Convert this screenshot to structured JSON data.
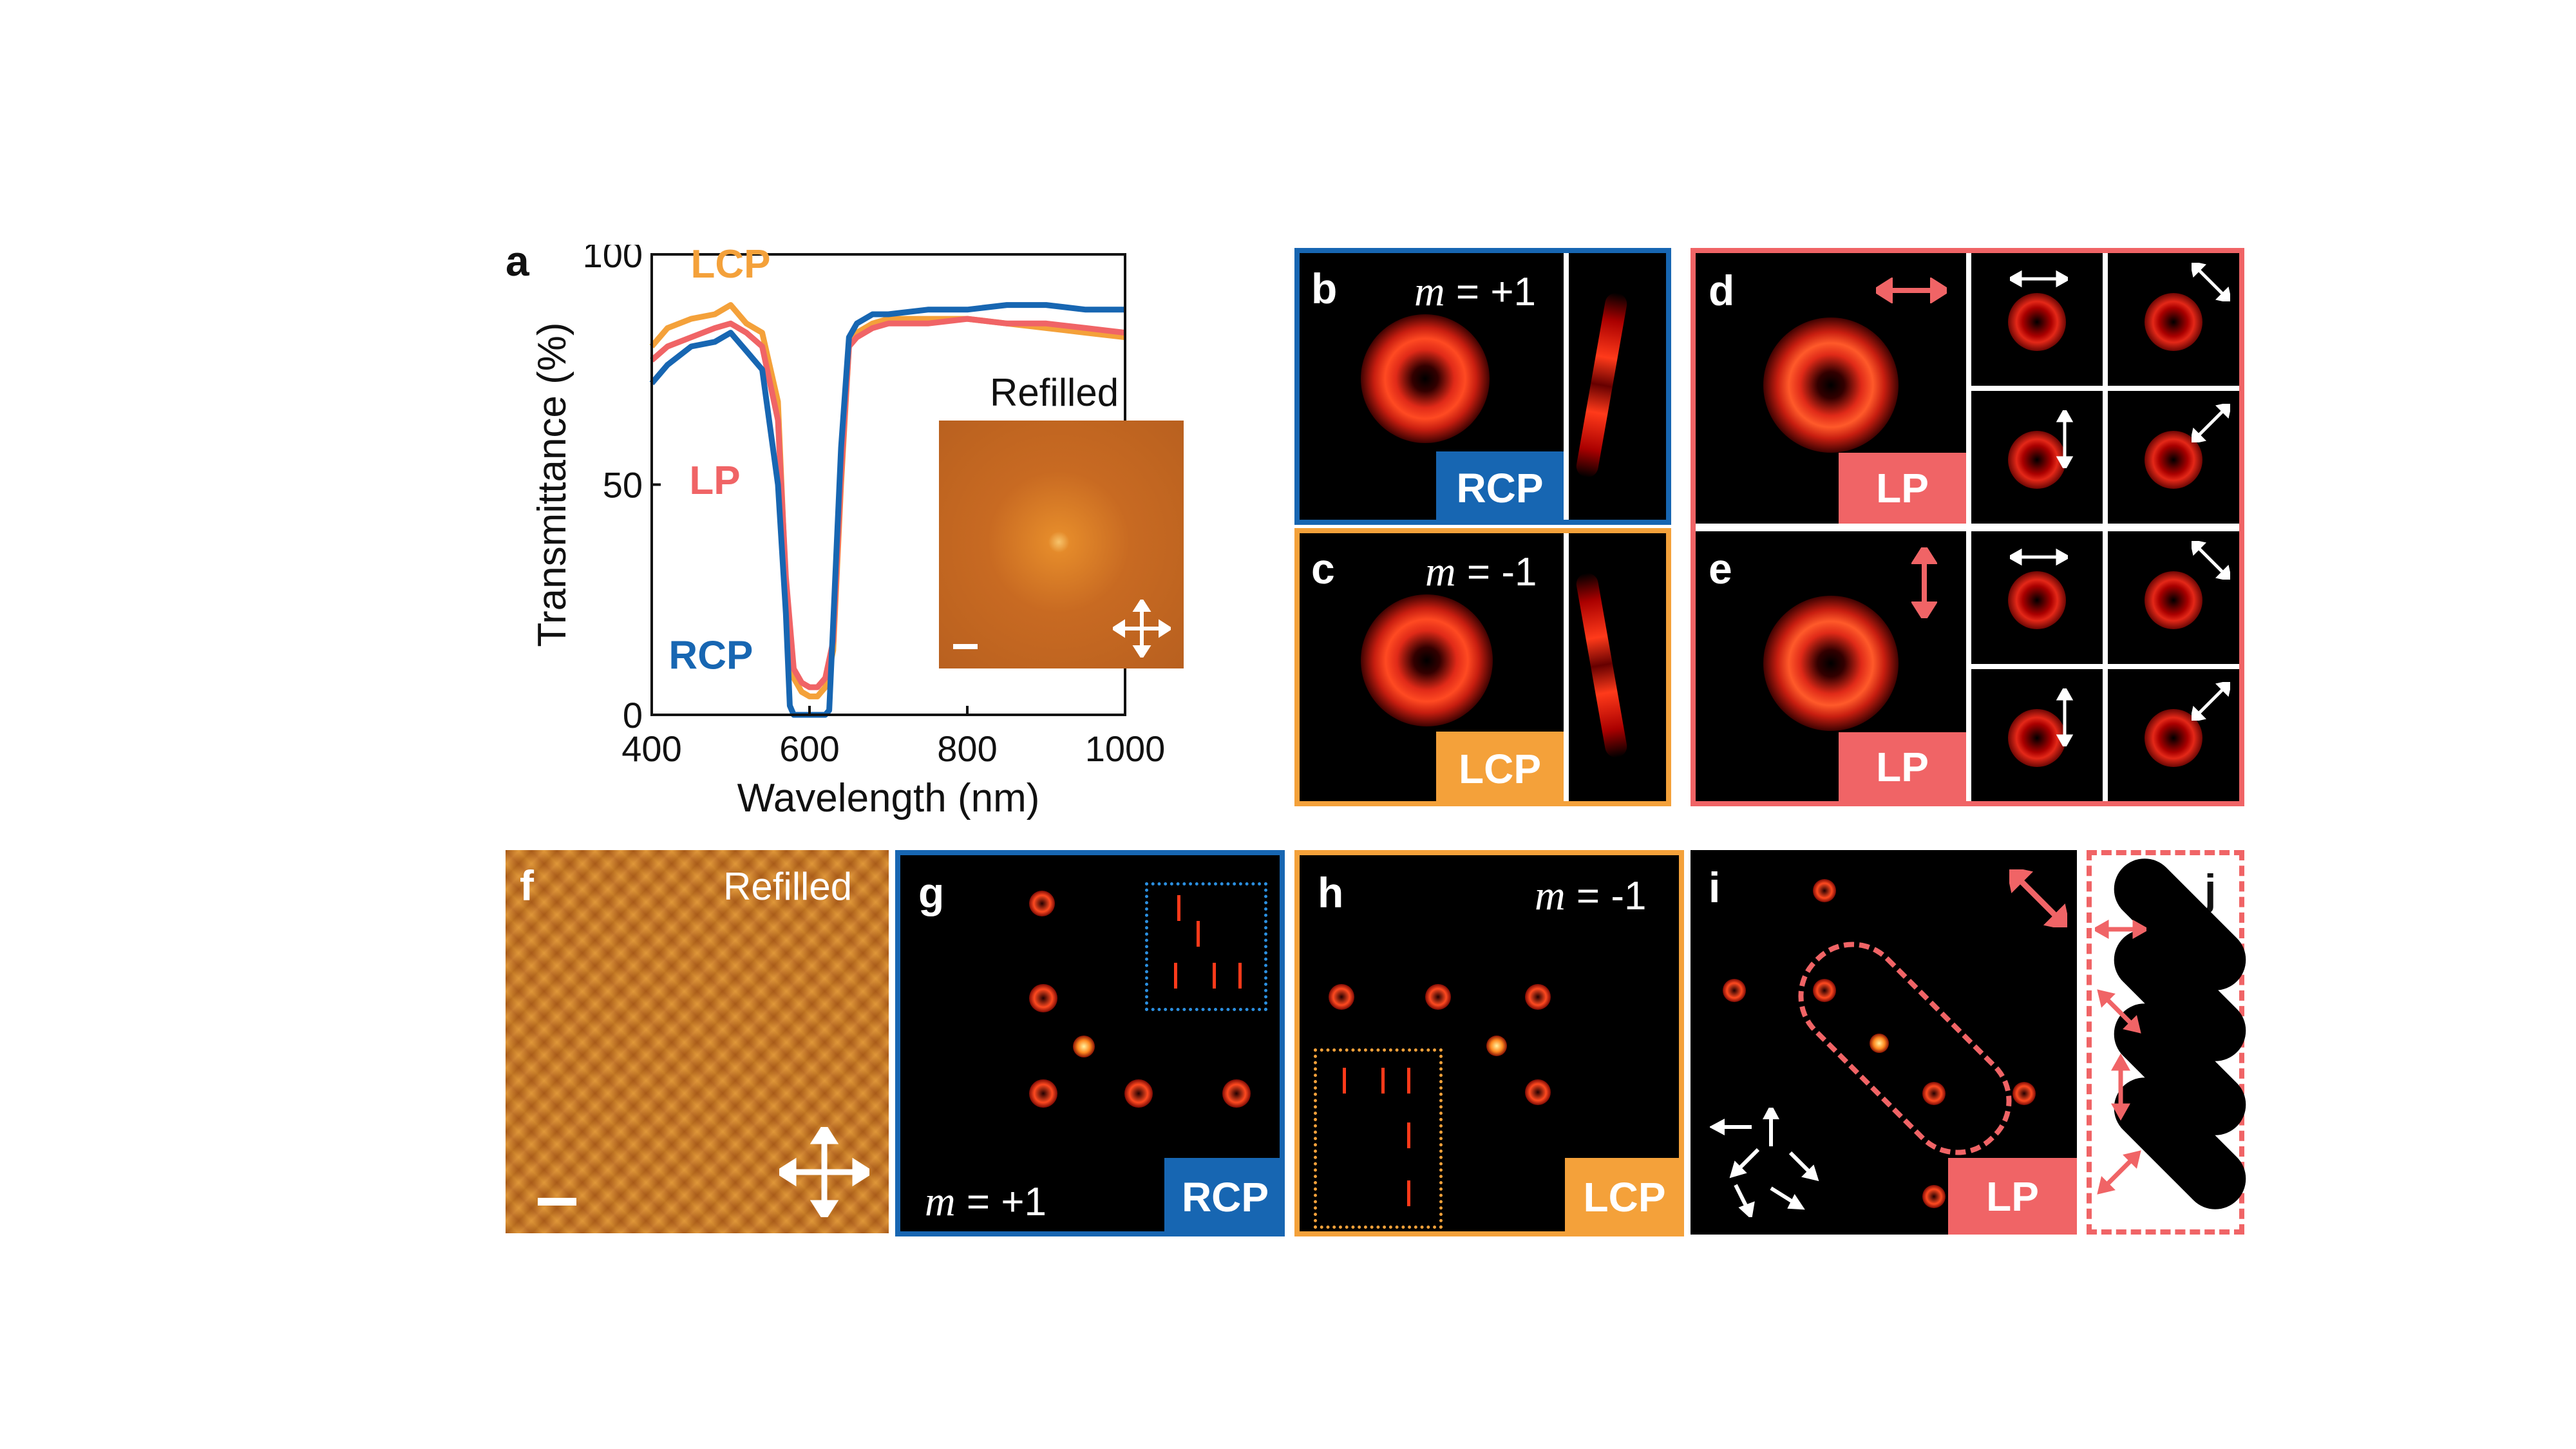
{
  "figure": {
    "panel_letters": [
      "a",
      "b",
      "c",
      "d",
      "e",
      "f",
      "g",
      "h",
      "i",
      "j"
    ],
    "refilled_label": "Refilled",
    "m_plus": "= +1",
    "m_minus": "= -1",
    "m_symbol": "m",
    "tags": {
      "rcp": "RCP",
      "lcp": "LCP",
      "lp": "LP"
    }
  },
  "colors": {
    "rcp": "#1766b2",
    "lcp": "#f4a13a",
    "lp": "#f06466",
    "panel_bg": "#000000"
  },
  "chart_data": {
    "type": "line",
    "title": "",
    "xlabel": "Wavelength (nm)",
    "ylabel": "Transmittance (%)",
    "xlim": [
      400,
      1000
    ],
    "ylim": [
      0,
      100
    ],
    "xticks": [
      400,
      600,
      800,
      1000
    ],
    "yticks": [
      0,
      50,
      100
    ],
    "inset_label": "Refilled",
    "series": [
      {
        "name": "LCP",
        "color": "#f4a13a",
        "x": [
          400,
          420,
          450,
          480,
          500,
          520,
          540,
          560,
          570,
          580,
          590,
          600,
          610,
          620,
          630,
          640,
          650,
          660,
          680,
          700,
          750,
          800,
          850,
          900,
          950,
          1000
        ],
        "y": [
          80,
          84,
          86,
          87,
          89,
          85,
          83,
          68,
          28,
          8,
          5,
          4,
          4,
          6,
          14,
          50,
          80,
          83,
          85,
          86,
          86,
          86,
          85,
          84,
          83,
          82
        ]
      },
      {
        "name": "LP",
        "color": "#f06466",
        "x": [
          400,
          420,
          450,
          480,
          500,
          520,
          540,
          560,
          570,
          580,
          590,
          600,
          610,
          620,
          630,
          640,
          650,
          660,
          680,
          700,
          750,
          800,
          850,
          900,
          950,
          1000
        ],
        "y": [
          77,
          80,
          82,
          84,
          85,
          83,
          80,
          64,
          30,
          10,
          7,
          6,
          6,
          8,
          16,
          52,
          80,
          82,
          84,
          85,
          85,
          86,
          85,
          85,
          84,
          83
        ]
      },
      {
        "name": "RCP",
        "color": "#1766b2",
        "x": [
          400,
          420,
          450,
          480,
          500,
          520,
          540,
          560,
          570,
          575,
          580,
          590,
          600,
          610,
          620,
          625,
          630,
          640,
          650,
          660,
          680,
          700,
          750,
          800,
          850,
          900,
          950,
          1000
        ],
        "y": [
          72,
          76,
          80,
          81,
          83,
          79,
          75,
          50,
          22,
          2,
          0,
          0,
          0,
          0,
          0,
          1,
          20,
          58,
          82,
          85,
          87,
          87,
          88,
          88,
          89,
          89,
          88,
          88
        ]
      }
    ],
    "labels": [
      "LCP",
      "LP",
      "RCP"
    ]
  }
}
